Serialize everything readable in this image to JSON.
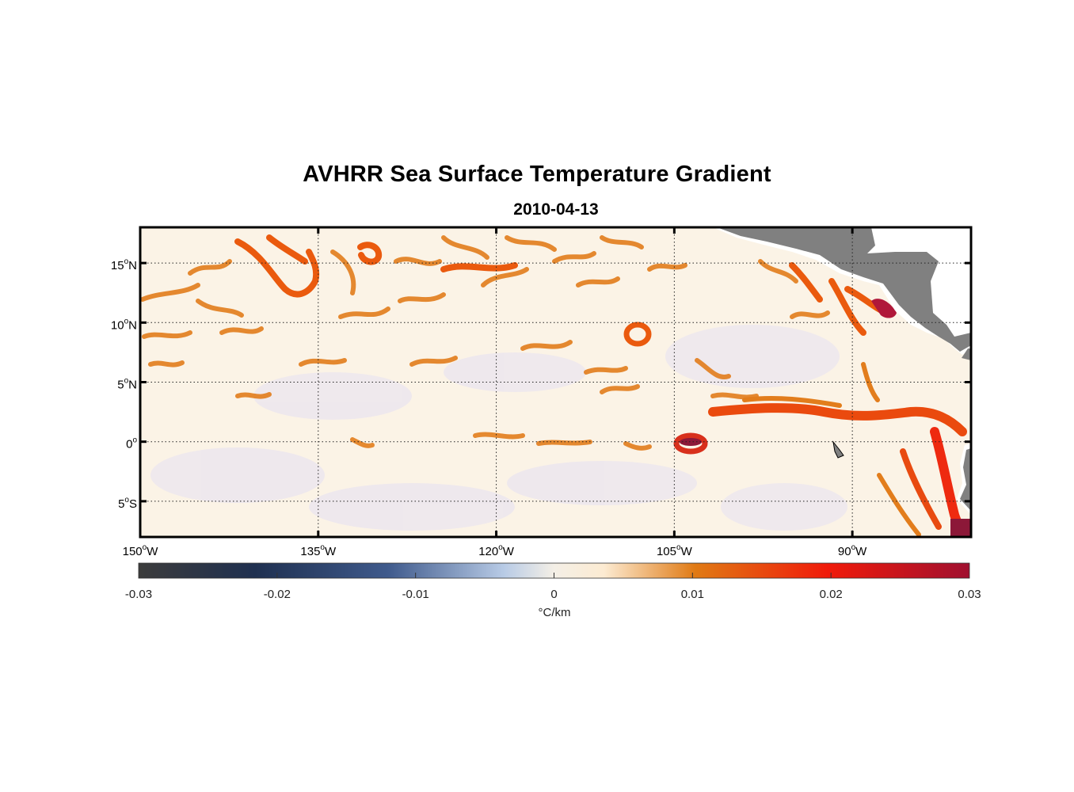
{
  "title": "AVHRR Sea Surface Temperature Gradient",
  "subtitle": "2010-04-13",
  "map": {
    "lon_range": [
      -150,
      -80
    ],
    "lat_range": [
      -8,
      18
    ],
    "lat_ticks": [
      {
        "value": 15,
        "deg": "15",
        "hemi": "N"
      },
      {
        "value": 10,
        "deg": "10",
        "hemi": "N"
      },
      {
        "value": 5,
        "deg": "5",
        "hemi": "N"
      },
      {
        "value": 0,
        "deg": "0",
        "hemi": ""
      },
      {
        "value": -5,
        "deg": "5",
        "hemi": "S"
      }
    ],
    "lon_ticks": [
      {
        "value": -150,
        "deg": "150",
        "hemi": "W"
      },
      {
        "value": -135,
        "deg": "135",
        "hemi": "W"
      },
      {
        "value": -120,
        "deg": "120",
        "hemi": "W"
      },
      {
        "value": -105,
        "deg": "105",
        "hemi": "W"
      },
      {
        "value": -90,
        "deg": "90",
        "hemi": "W"
      }
    ],
    "grid": true,
    "land_color": "#808080",
    "ocean_background": "#fbf3e6"
  },
  "colorbar": {
    "range": [
      -0.03,
      0.03
    ],
    "ticks": [
      "-0.03",
      "-0.02",
      "-0.01",
      "0",
      "0.01",
      "0.02",
      "0.03"
    ],
    "label": "°C/km",
    "colors": [
      "#3c3c3c",
      "#1f3050",
      "#3f5a8c",
      "#b8cbe6",
      "#fcebd2",
      "#e07a14",
      "#f01a0a",
      "#a01030"
    ]
  }
}
